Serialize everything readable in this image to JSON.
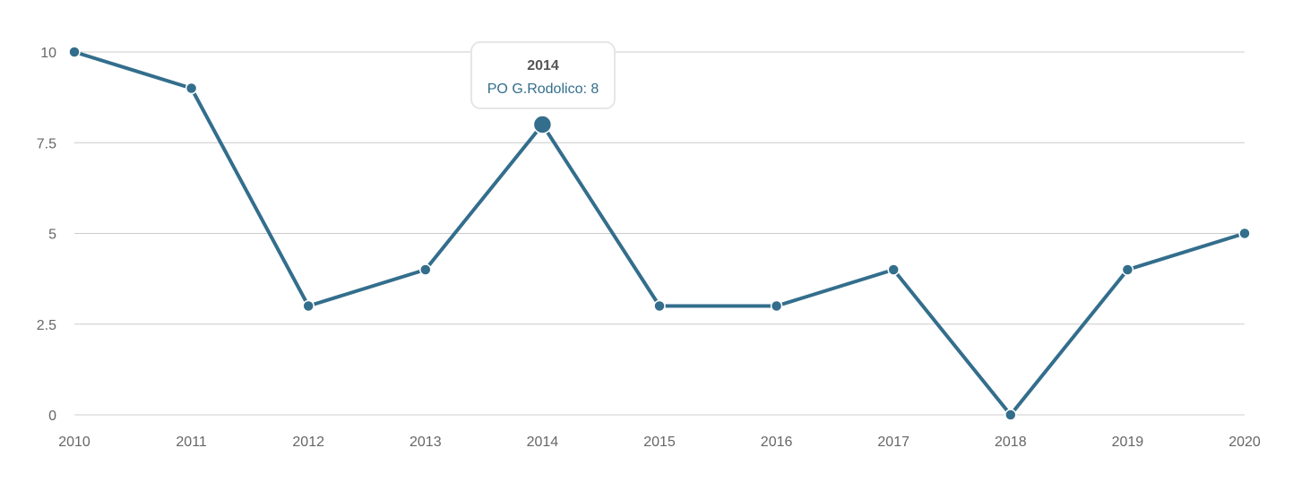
{
  "chart_data": {
    "type": "line",
    "x": [
      "2010",
      "2011",
      "2012",
      "2013",
      "2014",
      "2015",
      "2016",
      "2017",
      "2018",
      "2019",
      "2020"
    ],
    "series": [
      {
        "name": "PO G.Rodolico",
        "values": [
          10,
          9,
          3,
          4,
          8,
          3,
          3,
          4,
          0,
          4,
          5
        ],
        "color": "#336e8c"
      }
    ],
    "yticks": [
      "0",
      "2.5",
      "5",
      "7.5",
      "10"
    ],
    "ylim": [
      0,
      10
    ],
    "grid": true,
    "tooltip": {
      "title": "2014",
      "label": "PO G.Rodolico: 8",
      "index": 4
    }
  }
}
